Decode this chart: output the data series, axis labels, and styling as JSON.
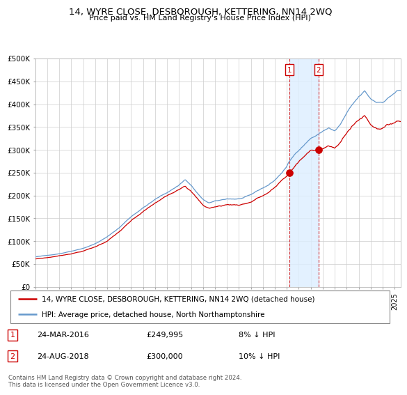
{
  "title": "14, WYRE CLOSE, DESBOROUGH, KETTERING, NN14 2WQ",
  "subtitle": "Price paid vs. HM Land Registry's House Price Index (HPI)",
  "legend_line1": "14, WYRE CLOSE, DESBOROUGH, KETTERING, NN14 2WQ (detached house)",
  "legend_line2": "HPI: Average price, detached house, North Northamptonshire",
  "transaction1_date": "24-MAR-2016",
  "transaction1_price": 249995,
  "transaction1_note": "8% ↓ HPI",
  "transaction2_date": "24-AUG-2018",
  "transaction2_price": 300000,
  "transaction2_note": "10% ↓ HPI",
  "copyright": "Contains HM Land Registry data © Crown copyright and database right 2024.\nThis data is licensed under the Open Government Licence v3.0.",
  "red_color": "#cc0000",
  "blue_color": "#6699cc",
  "bg_color": "#ffffff",
  "grid_color": "#cccccc",
  "highlight_color": "#ddeeff"
}
